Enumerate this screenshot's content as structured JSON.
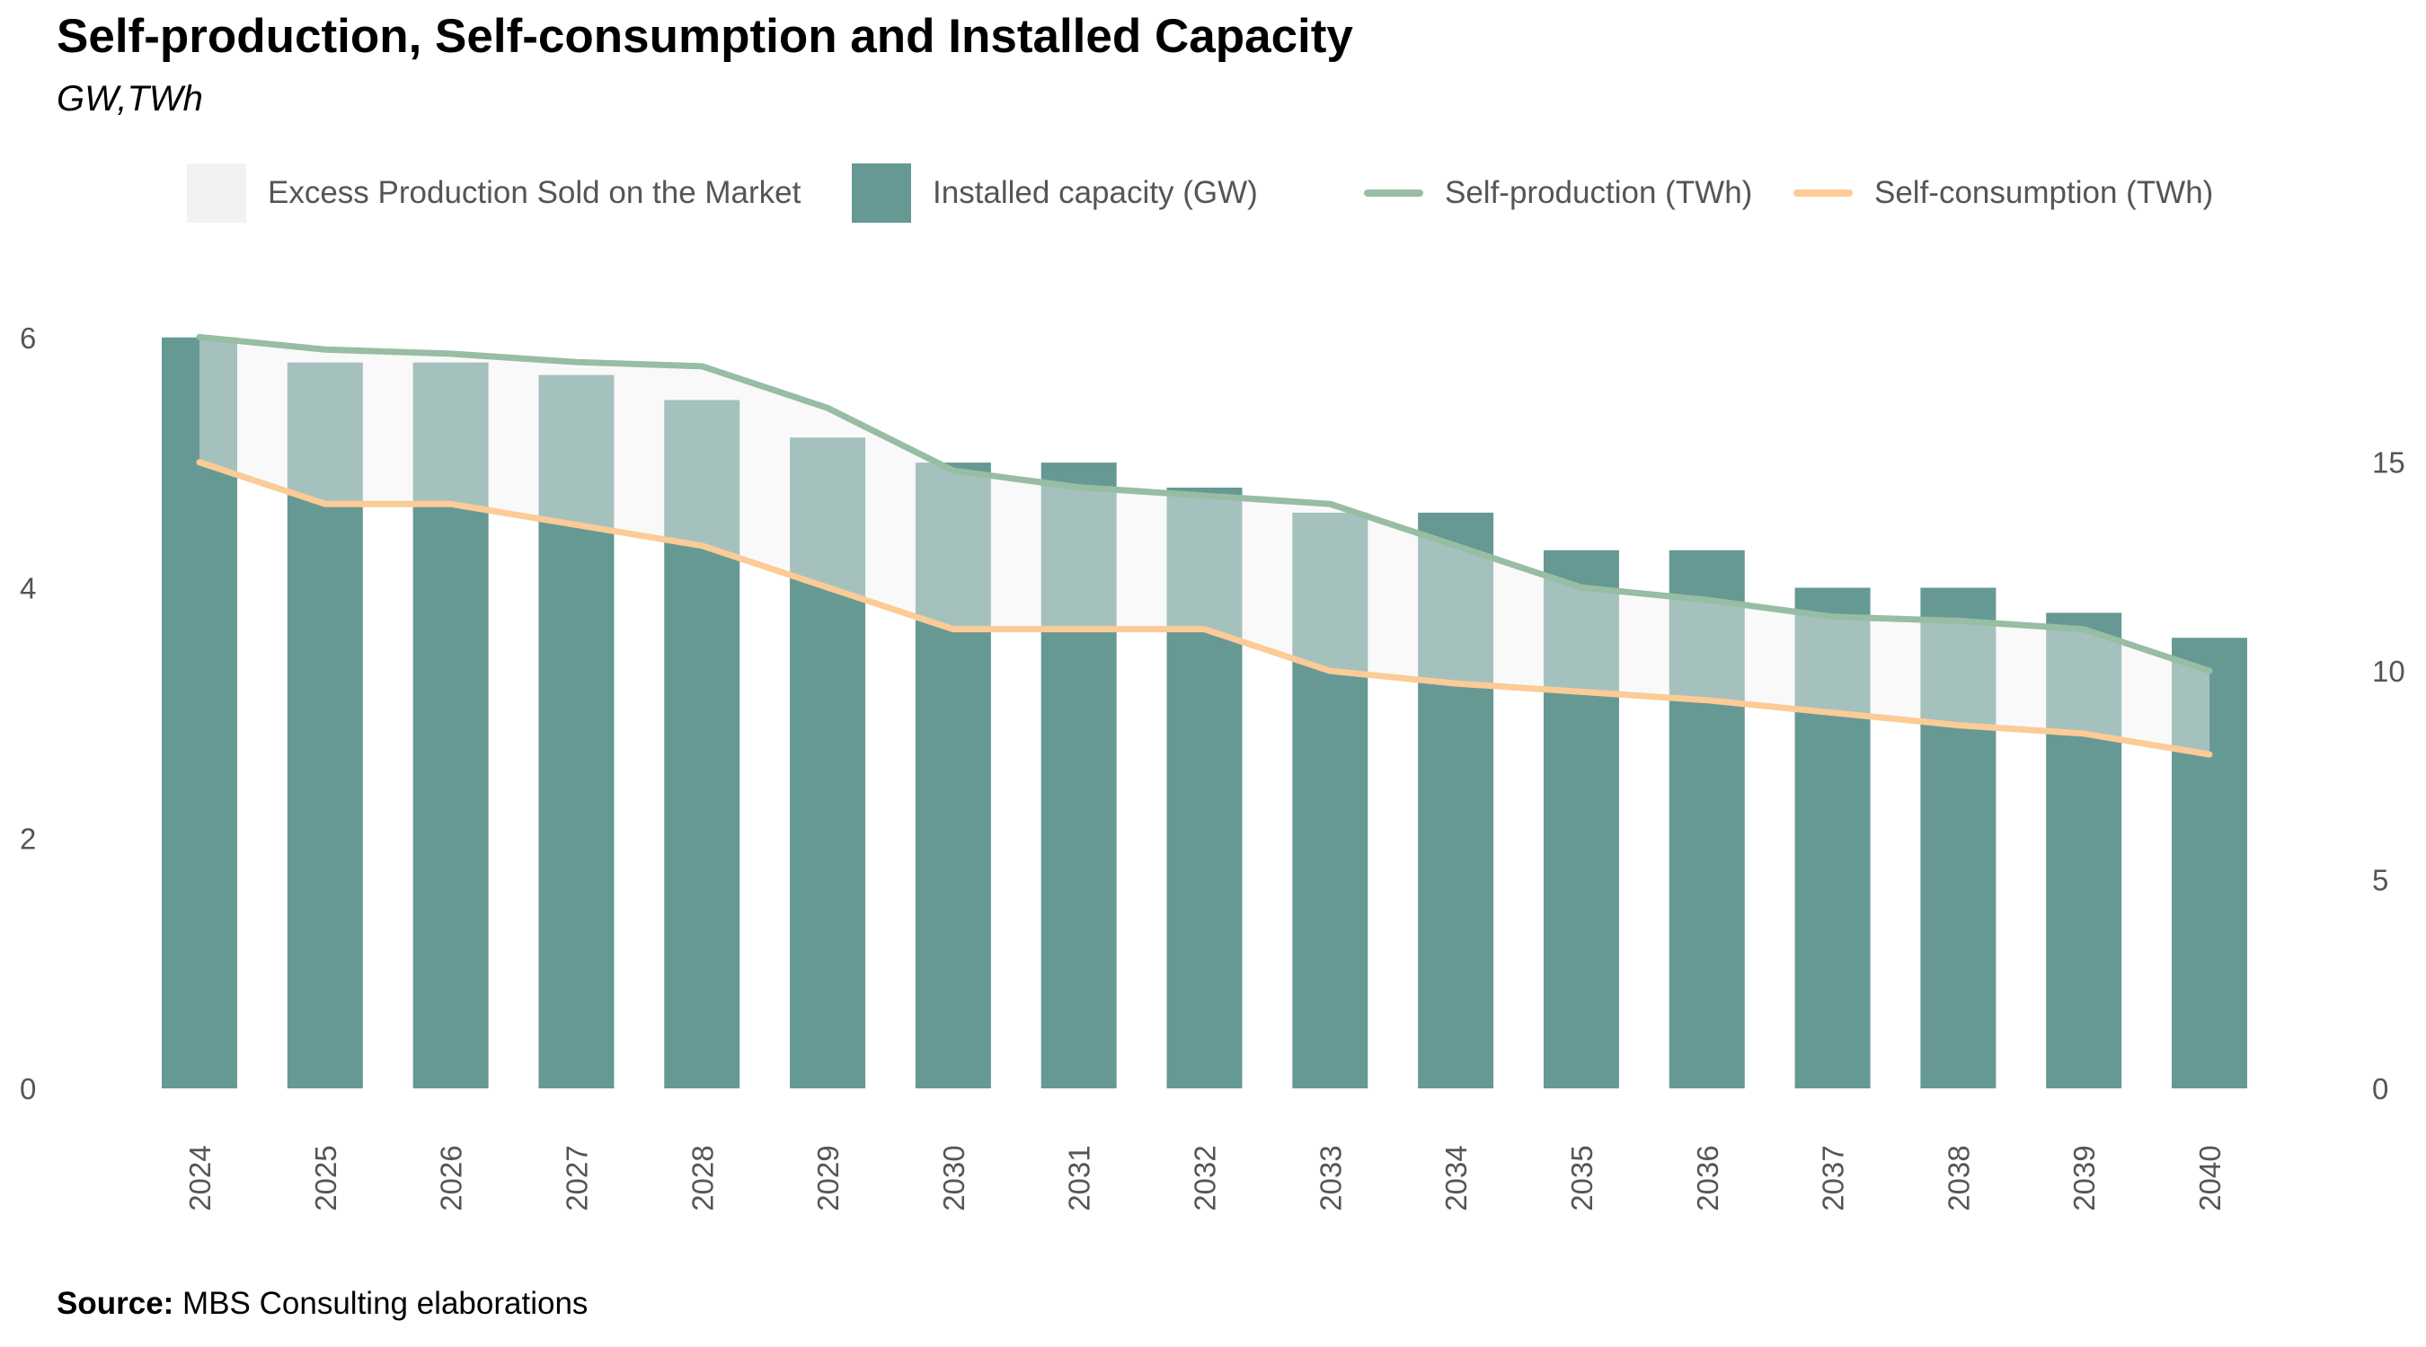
{
  "title": "Self-production, Self-consumption and Installed Capacity",
  "subtitle": "GW,TWh",
  "source": {
    "label": "Source:",
    "text": "MBS Consulting elaborations"
  },
  "colors": {
    "installed": "#669994",
    "excess_fill": "#f2f2f2",
    "self_production": "#97bda3",
    "self_consumption": "#fccb96",
    "axis_text": "#555555"
  },
  "chart_data": {
    "type": "bar",
    "categories": [
      "2024",
      "2025",
      "2026",
      "2027",
      "2028",
      "2029",
      "2030",
      "2031",
      "2032",
      "2033",
      "2034",
      "2035",
      "2036",
      "2037",
      "2038",
      "2039",
      "2040"
    ],
    "legend_position": "top",
    "grid": false,
    "legend": [
      {
        "name": "Excess Production Sold on the Market",
        "kind": "area",
        "color": "#f2f2f2"
      },
      {
        "name": "Installed capacity (GW)",
        "kind": "bar",
        "color": "#669994"
      },
      {
        "name": "Self-production (TWh)",
        "kind": "line",
        "color": "#97bda3"
      },
      {
        "name": "Self-consumption (TWh)",
        "kind": "line",
        "color": "#fccb96"
      }
    ],
    "series": [
      {
        "name": "Installed capacity (GW)",
        "axis": "left",
        "values": [
          6.0,
          5.8,
          5.8,
          5.7,
          5.5,
          5.2,
          5.0,
          5.0,
          4.8,
          4.6,
          4.6,
          4.3,
          4.3,
          4.0,
          4.0,
          3.8,
          3.6
        ]
      },
      {
        "name": "Self-production (TWh)",
        "axis": "right",
        "values": [
          18.0,
          17.7,
          17.6,
          17.4,
          17.3,
          16.3,
          14.8,
          14.4,
          14.2,
          14.0,
          13.0,
          12.0,
          11.7,
          11.3,
          11.2,
          11.0,
          10.0
        ]
      },
      {
        "name": "Self-consumption (TWh)",
        "axis": "right",
        "values": [
          15.0,
          14.0,
          14.0,
          13.5,
          13.0,
          12.0,
          11.0,
          11.0,
          11.0,
          10.0,
          9.7,
          9.5,
          9.3,
          9.0,
          8.7,
          8.5,
          8.0
        ]
      }
    ],
    "y_left": {
      "ticks": [
        0,
        2,
        4,
        6
      ],
      "range": [
        0,
        6.07
      ]
    },
    "y_right": {
      "ticks": [
        0,
        5,
        10,
        15
      ],
      "range": [
        0,
        18.2
      ]
    }
  }
}
